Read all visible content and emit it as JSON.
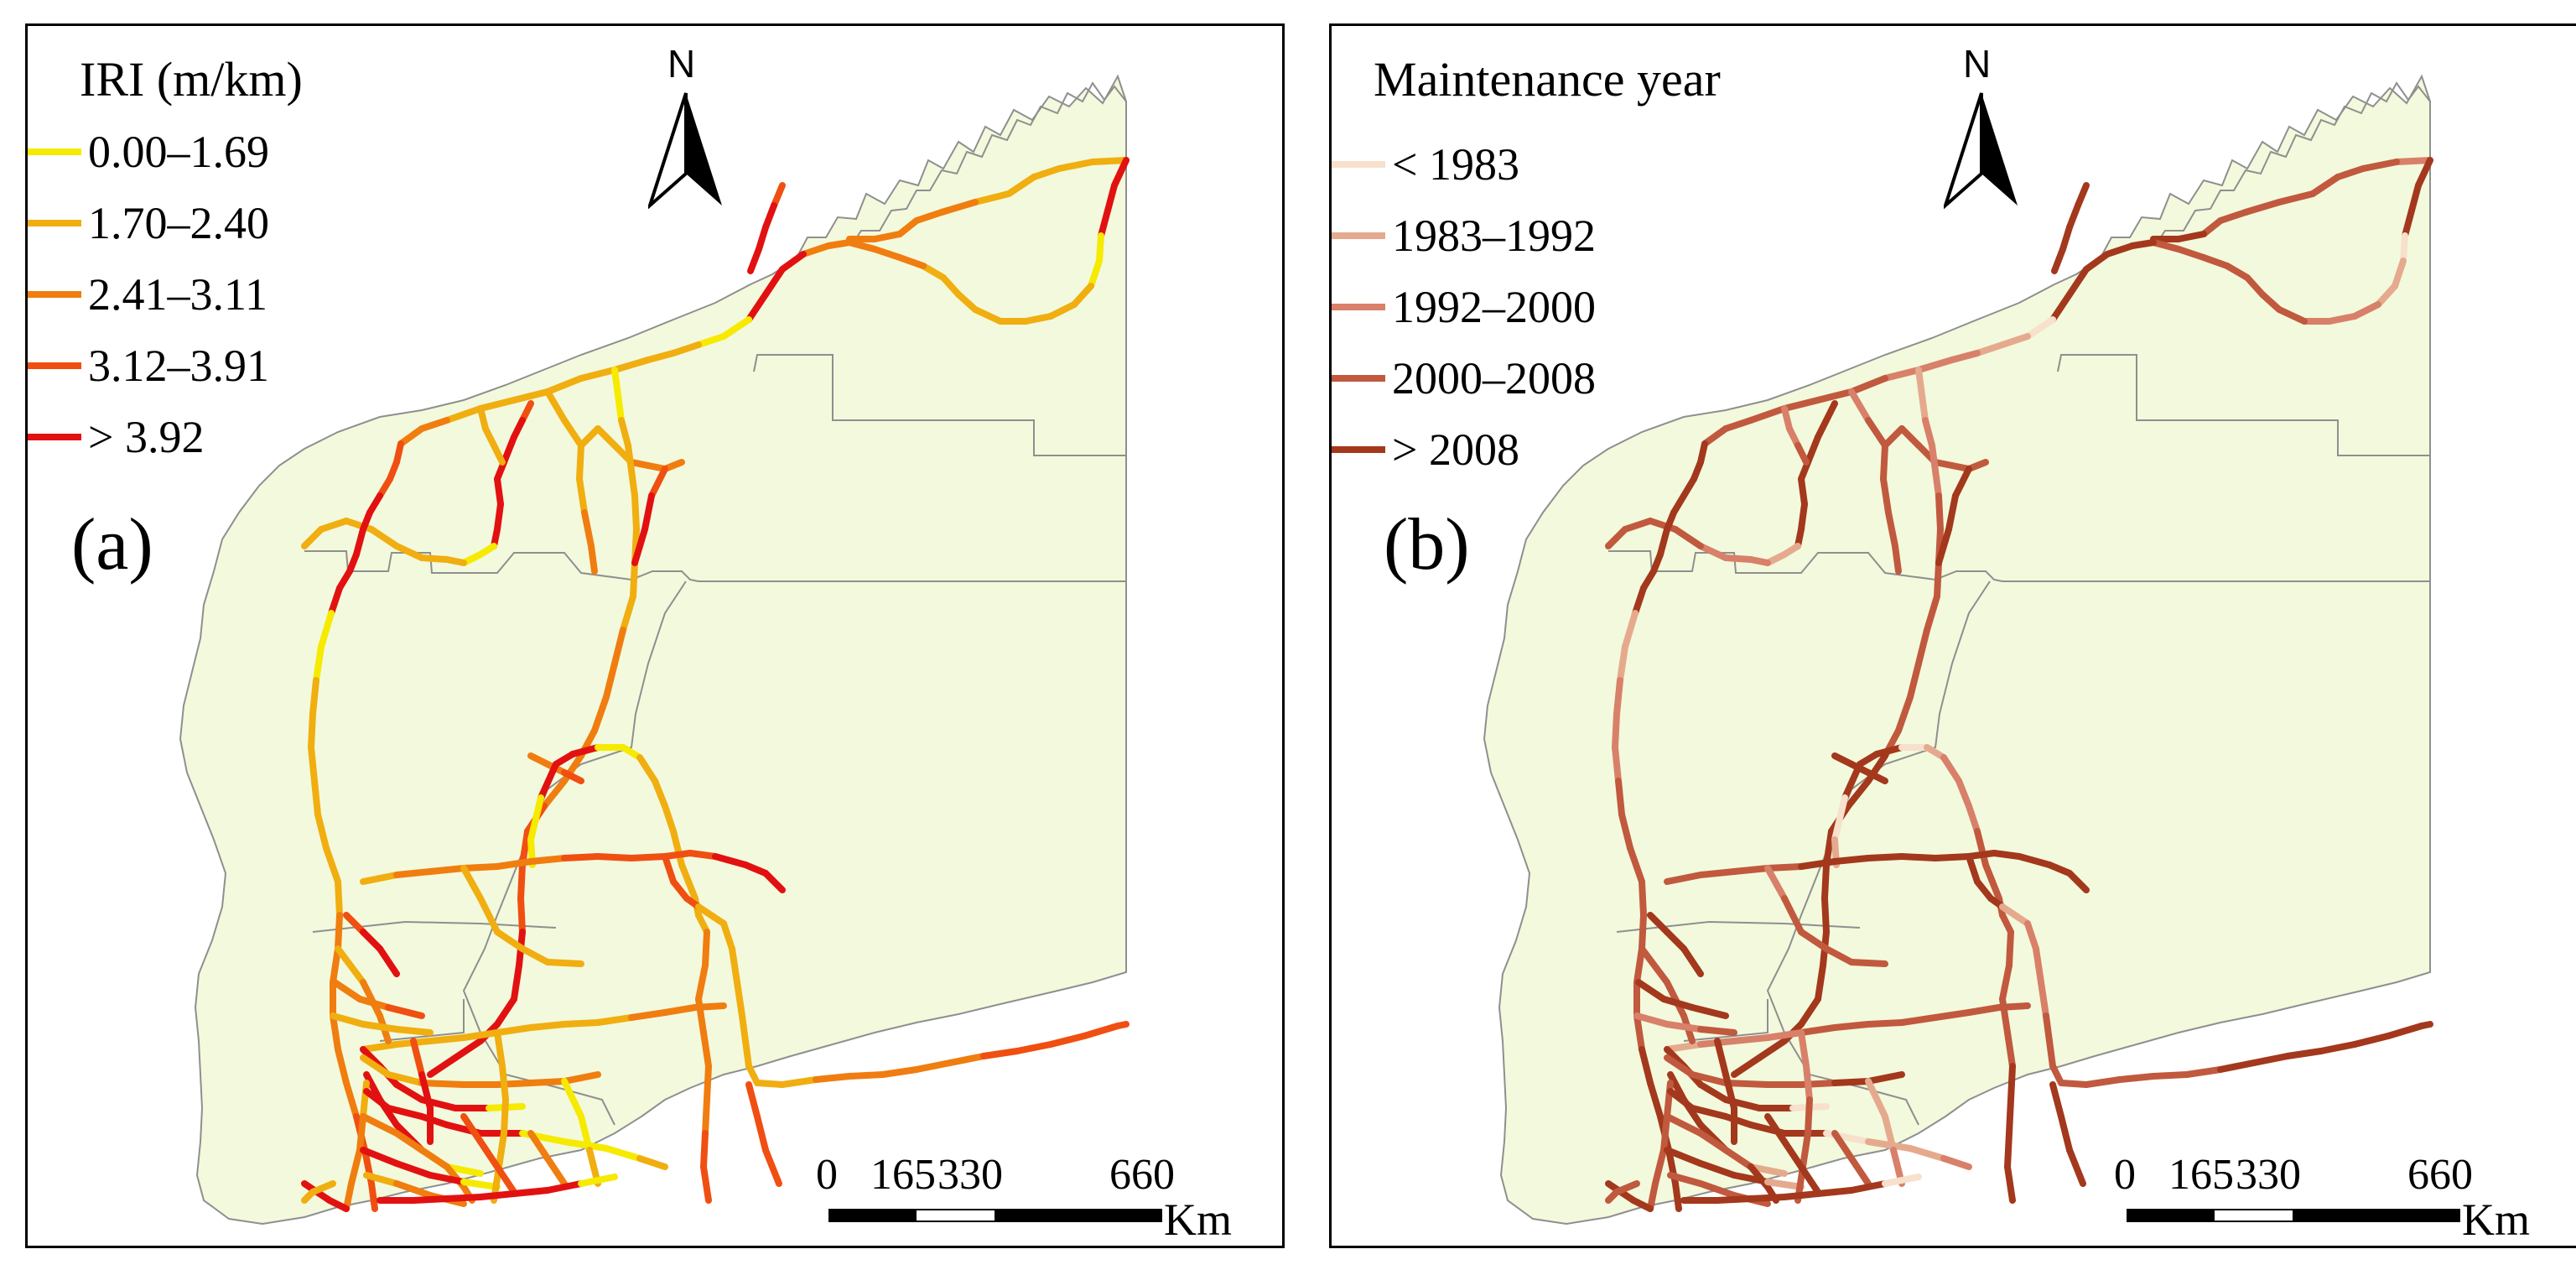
{
  "colors": {
    "land": "#f3f9dc",
    "boundary": "#8f8f8f",
    "iri": [
      "#f5ea00",
      "#f0ae10",
      "#f07d10",
      "#f04f12",
      "#e21111"
    ],
    "maintenance": [
      "#f7e0cc",
      "#e5aa8e",
      "#d8806a",
      "#c1593f",
      "#a3381d"
    ]
  },
  "north_arrow": {
    "letter": "N"
  },
  "scale_bar": {
    "ticks": [
      "0",
      "165",
      "330",
      "660"
    ],
    "unit": "Km"
  },
  "panels": [
    {
      "label": "(a)",
      "legend_title": "IRI (m/km)",
      "legend": [
        {
          "label": "0.00–1.69",
          "color": "#f5ea00"
        },
        {
          "label": "1.70–2.40",
          "color": "#f0ae10"
        },
        {
          "label": "2.41–3.11",
          "color": "#f07d10"
        },
        {
          "label": "3.12–3.91",
          "color": "#f04f12"
        },
        {
          "label": "> 3.92",
          "color": "#e21111"
        }
      ]
    },
    {
      "label": "(b)",
      "legend_title": "Maintenance year",
      "legend": [
        {
          "label": "< 1983",
          "color": "#f7e0cc"
        },
        {
          "label": "1983–1992",
          "color": "#e5aa8e"
        },
        {
          "label": "1992–2000",
          "color": "#d8806a"
        },
        {
          "label": "2000–2008",
          "color": "#c1593f"
        },
        {
          "label": "> 2008",
          "color": "#a3381d"
        }
      ]
    }
  ]
}
